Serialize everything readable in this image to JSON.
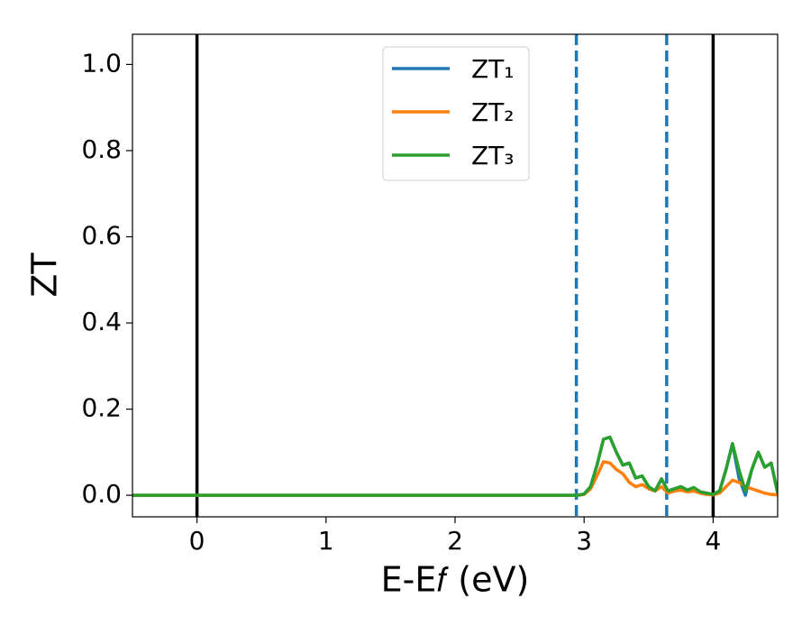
{
  "chart_data": {
    "type": "line",
    "xlabel": "E-E𝑓 (eV)",
    "ylabel": "ZT",
    "x": [
      -0.5,
      2.9,
      2.95,
      3.0,
      3.05,
      3.1,
      3.15,
      3.2,
      3.25,
      3.3,
      3.35,
      3.4,
      3.45,
      3.5,
      3.55,
      3.6,
      3.65,
      3.7,
      3.75,
      3.8,
      3.85,
      3.9,
      3.95,
      4.0,
      4.05,
      4.1,
      4.15,
      4.2,
      4.25,
      4.3,
      4.35,
      4.4,
      4.45,
      4.5
    ],
    "series": [
      {
        "name": "ZT₁",
        "color": "#1f77b4",
        "values": [
          0,
          0,
          0,
          0.003,
          0.02,
          0.07,
          0.13,
          0.135,
          0.1,
          0.07,
          0.075,
          0.04,
          0.045,
          0.02,
          0.01,
          0.038,
          0.01,
          0.015,
          0.02,
          0.012,
          0.018,
          0.008,
          0.005,
          0.002,
          0.01,
          0.06,
          0.12,
          0.04,
          0,
          0.06,
          0.1,
          0.065,
          0.075,
          0.005
        ]
      },
      {
        "name": "ZT₂",
        "color": "#ff7f0e",
        "values": [
          0,
          0,
          0,
          0.002,
          0.015,
          0.045,
          0.078,
          0.075,
          0.06,
          0.05,
          0.03,
          0.02,
          0.025,
          0.015,
          0.01,
          0.02,
          0.005,
          0.01,
          0.012,
          0.008,
          0.01,
          0.005,
          0.002,
          0.001,
          0.005,
          0.02,
          0.035,
          0.03,
          0.02,
          0.015,
          0.01,
          0.005,
          0.002,
          0.001
        ]
      },
      {
        "name": "ZT₃",
        "color": "#2ca02c",
        "values": [
          0,
          0,
          0,
          0.003,
          0.02,
          0.07,
          0.13,
          0.135,
          0.1,
          0.07,
          0.075,
          0.04,
          0.045,
          0.02,
          0.01,
          0.038,
          0.01,
          0.015,
          0.02,
          0.012,
          0.018,
          0.008,
          0.005,
          0.002,
          0.01,
          0.06,
          0.12,
          0.06,
          0.01,
          0.06,
          0.1,
          0.065,
          0.075,
          0.005
        ]
      }
    ],
    "vlines": [
      {
        "x": 0,
        "color": "#000000",
        "dashed": false
      },
      {
        "x": 4,
        "color": "#000000",
        "dashed": false
      },
      {
        "x": 2.94,
        "color": "#1f77b4",
        "dashed": true
      },
      {
        "x": 3.64,
        "color": "#1f77b4",
        "dashed": true
      }
    ],
    "xlim": [
      -0.5,
      4.5
    ],
    "ylim": [
      -0.05,
      1.07
    ],
    "xticks": [
      0,
      1,
      2,
      3,
      4
    ],
    "yticks": [
      {
        "value": 0,
        "label": "0.0"
      },
      0.2,
      0.4,
      0.6,
      0.8,
      {
        "value": 1,
        "label": "1.0"
      }
    ],
    "grid": false,
    "legend": "upper center"
  }
}
